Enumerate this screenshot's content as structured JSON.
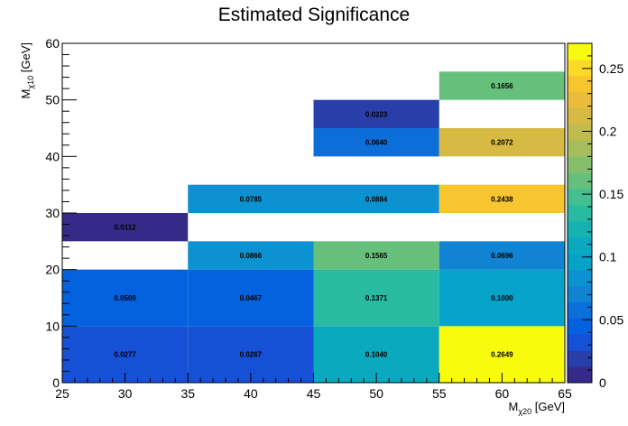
{
  "chart_data": {
    "type": "heatmap",
    "title": "Estimated Significance",
    "xlabel": {
      "main": "M",
      "sub": "χ20",
      "unit": " [GeV]"
    },
    "ylabel": {
      "main": "M",
      "sub": "χ10",
      "unit": " [GeV]"
    },
    "xlim": [
      25,
      65
    ],
    "ylim": [
      0,
      60
    ],
    "zlim": [
      0,
      0.27
    ],
    "x_ticks": [
      "25",
      "30",
      "35",
      "40",
      "45",
      "50",
      "55",
      "60",
      "65"
    ],
    "y_ticks": [
      "0",
      "10",
      "20",
      "30",
      "40",
      "50",
      "60"
    ],
    "z_ticks": [
      "0",
      "0.05",
      "0.1",
      "0.15",
      "0.2",
      "0.25"
    ],
    "cells": [
      {
        "x0": 25,
        "x1": 35,
        "y0": 0,
        "y1": 10,
        "value": 0.0277,
        "label": "0.0277"
      },
      {
        "x0": 35,
        "x1": 45,
        "y0": 0,
        "y1": 10,
        "value": 0.0267,
        "label": "0.0267"
      },
      {
        "x0": 45,
        "x1": 55,
        "y0": 0,
        "y1": 10,
        "value": 0.104,
        "label": "0.1040"
      },
      {
        "x0": 55,
        "x1": 65,
        "y0": 0,
        "y1": 10,
        "value": 0.2649,
        "label": "0.2649"
      },
      {
        "x0": 25,
        "x1": 35,
        "y0": 10,
        "y1": 20,
        "value": 0.0509,
        "label": "0.0509"
      },
      {
        "x0": 35,
        "x1": 45,
        "y0": 10,
        "y1": 20,
        "value": 0.0467,
        "label": "0.0467"
      },
      {
        "x0": 45,
        "x1": 55,
        "y0": 10,
        "y1": 20,
        "value": 0.1371,
        "label": "0.1371"
      },
      {
        "x0": 55,
        "x1": 65,
        "y0": 10,
        "y1": 20,
        "value": 0.1,
        "label": "0.1000"
      },
      {
        "x0": 35,
        "x1": 45,
        "y0": 20,
        "y1": 25,
        "value": 0.0866,
        "label": "0.0866"
      },
      {
        "x0": 45,
        "x1": 55,
        "y0": 20,
        "y1": 25,
        "value": 0.1565,
        "label": "0.1565"
      },
      {
        "x0": 55,
        "x1": 65,
        "y0": 20,
        "y1": 25,
        "value": 0.0696,
        "label": "0.0696"
      },
      {
        "x0": 25,
        "x1": 35,
        "y0": 25,
        "y1": 30,
        "value": 0.0112,
        "label": "0.0112"
      },
      {
        "x0": 35,
        "x1": 45,
        "y0": 30,
        "y1": 35,
        "value": 0.0785,
        "label": "0.0785"
      },
      {
        "x0": 45,
        "x1": 55,
        "y0": 30,
        "y1": 35,
        "value": 0.0884,
        "label": "0.0884"
      },
      {
        "x0": 55,
        "x1": 65,
        "y0": 30,
        "y1": 35,
        "value": 0.2438,
        "label": "0.2438"
      },
      {
        "x0": 45,
        "x1": 55,
        "y0": 40,
        "y1": 45,
        "value": 0.064,
        "label": "0.0640"
      },
      {
        "x0": 55,
        "x1": 65,
        "y0": 40,
        "y1": 45,
        "value": 0.2072,
        "label": "0.2072"
      },
      {
        "x0": 45,
        "x1": 55,
        "y0": 45,
        "y1": 50,
        "value": 0.0223,
        "label": "0.0223"
      },
      {
        "x0": 55,
        "x1": 65,
        "y0": 50,
        "y1": 55,
        "value": 0.1656,
        "label": "0.1656"
      }
    ],
    "palette": [
      "#352a87",
      "#283ea8",
      "#1650d6",
      "#0462df",
      "#0b6ed9",
      "#1183d3",
      "#0c92d1",
      "#06a3c9",
      "#0ba9c0",
      "#16b2b3",
      "#29baa2",
      "#45bf90",
      "#66c07c",
      "#86bf6c",
      "#a5bd5d",
      "#bfbb4f",
      "#d6ba44",
      "#e9bc3b",
      "#f6c52f",
      "#fcd829",
      "#f9fb0e"
    ],
    "grid": false,
    "colorbar": "right"
  }
}
